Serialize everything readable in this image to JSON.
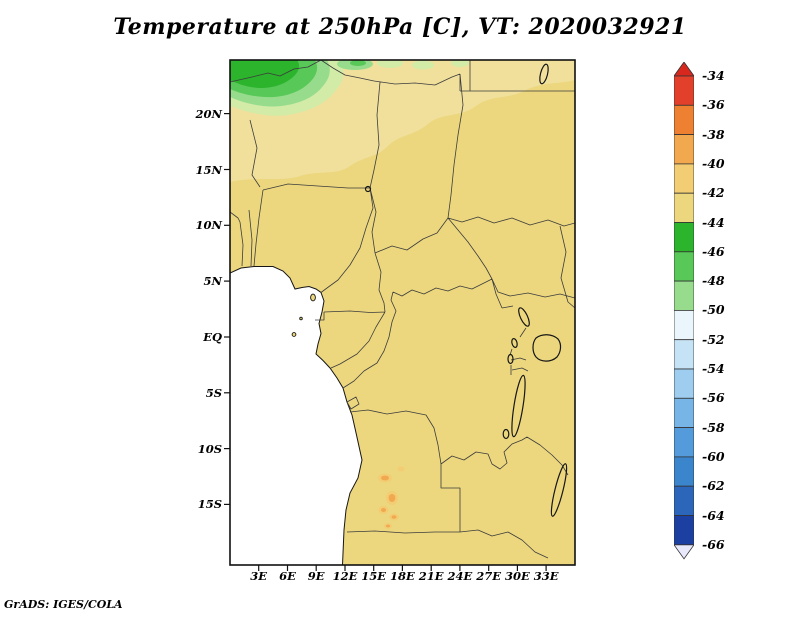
{
  "title": "Temperature at 250hPa [C], VT: 2020032921",
  "credit": "GrADS: IGES/COLA",
  "axes": {
    "lat_labels": [
      "20N",
      "15N",
      "10N",
      "5N",
      "EQ",
      "5S",
      "10S",
      "15S"
    ],
    "lon_labels": [
      "3E",
      "6E",
      "9E",
      "12E",
      "15E",
      "18E",
      "21E",
      "24E",
      "27E",
      "30E",
      "33E"
    ]
  },
  "colorbar": {
    "labels": [
      "-34",
      "-36",
      "-38",
      "-40",
      "-42",
      "-44",
      "-46",
      "-48",
      "-50",
      "-52",
      "-54",
      "-56",
      "-58",
      "-60",
      "-62",
      "-64",
      "-66"
    ],
    "top_arrow_color": "#d8281e",
    "bottom_arrow_color": "#e9e9fc",
    "segment_colors": [
      "#e2402a",
      "#ee8032",
      "#f2a84f",
      "#f2cd74",
      "#ecd77e",
      "#2cb42c",
      "#58c858",
      "#96dc8c",
      "#eaf6fb",
      "#c6e3f5",
      "#9ecdef",
      "#76b5e6",
      "#539bda",
      "#3b85cd",
      "#2b66bb",
      "#1c3fa2"
    ]
  },
  "colors": {
    "land": "#ecd77e",
    "north_band": "#f0e09c",
    "green_strong": "#2cb42c",
    "green_mid": "#58c858",
    "green_light": "#96dc8c",
    "green_pale": "#d2eba6",
    "warm_spot": "#f2a84f",
    "warm_spot_halo": "#f2cd74",
    "border": "#3c3c3c",
    "ocean": "#ffffff"
  },
  "chart_data": {
    "type": "heatmap",
    "title": "Temperature at 250hPa [C], VT: 2020032921",
    "variable": "Temperature",
    "pressure_level": "250hPa",
    "units": "C",
    "valid_time_label": "VT: 2020032921",
    "x_axis": {
      "label_type": "longitude",
      "ticks": [
        "3E",
        "6E",
        "9E",
        "12E",
        "15E",
        "18E",
        "21E",
        "24E",
        "27E",
        "30E",
        "33E"
      ]
    },
    "y_axis": {
      "label_type": "latitude",
      "ticks": [
        "20N",
        "15N",
        "10N",
        "5N",
        "EQ",
        "5S",
        "10S",
        "15S"
      ]
    },
    "colorbar_levels": [
      -34,
      -36,
      -38,
      -40,
      -42,
      -44,
      -46,
      -48,
      -50,
      -52,
      -54,
      -56,
      -58,
      -60,
      -62,
      -64,
      -66
    ],
    "legend_position": "right",
    "shaded_regions": [
      {
        "area": "most of the map domain (central Africa)",
        "temperature_c": "-42 to -44"
      },
      {
        "area": "northern Sahara band (north of about 15N)",
        "temperature_c": "-40 to -42"
      },
      {
        "area": "far northwest corner (northern Algeria / Tunisia coast)",
        "temperature_c": "-44 to -50 (green shades)"
      },
      {
        "area": "small spots in central Angola (~15E-18E, 12S-16S)",
        "temperature_c": "-38 to -40"
      }
    ],
    "source_label": "GrADS: IGES/COLA"
  }
}
